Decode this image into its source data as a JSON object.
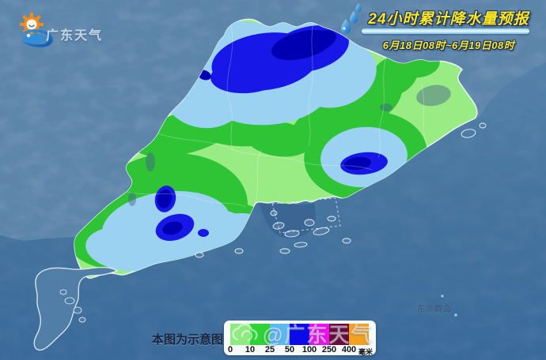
{
  "logo": {
    "text": "广东天气"
  },
  "header": {
    "title": "24小时累计降水量预报",
    "period": "6月18日08时~6月19日08时"
  },
  "map": {
    "island_label": "东沙群岛"
  },
  "legend": {
    "note": "本图为示意图",
    "unit": "毫米",
    "thresholds": [
      "0",
      "10",
      "25",
      "50",
      "100",
      "250",
      "400"
    ],
    "colors": [
      "#8deb7f",
      "#2ed336",
      "#5db9f0",
      "#0b0bea",
      "#ee10ee",
      "#6b0a3a",
      "#f2a21f"
    ]
  },
  "watermark": {
    "text": "@广东天气"
  },
  "palette": {
    "sea": "#47769f",
    "terrain": "#5d86ab",
    "rain_light_green": "#99ec84",
    "rain_green": "#2fc436",
    "rain_light_blue": "#9cd2f1",
    "rain_blue": "#1717e8",
    "rain_navy": "#0000b2",
    "title_yellow": "#ffe71c"
  }
}
